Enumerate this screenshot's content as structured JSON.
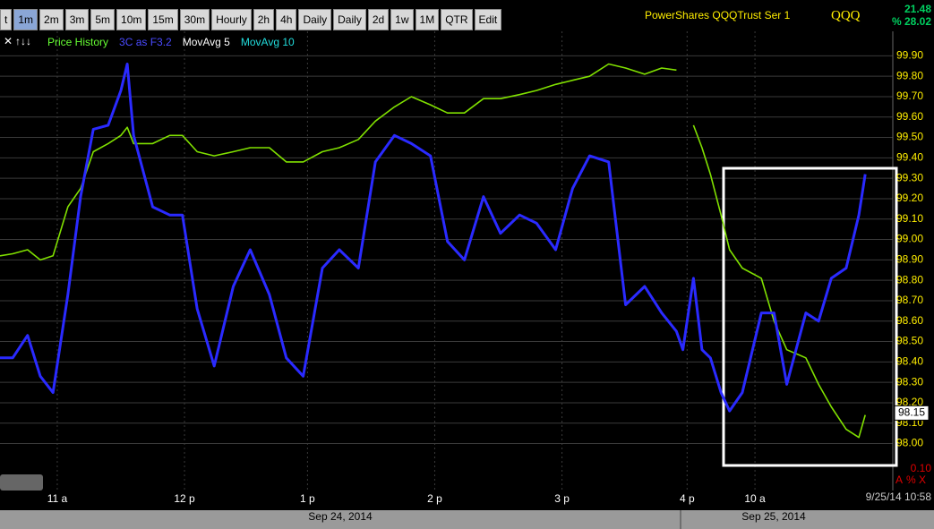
{
  "toolbar": {
    "buttons": [
      "t",
      "1m",
      "2m",
      "3m",
      "5m",
      "10m",
      "15m",
      "30m",
      "Hourly",
      "2h",
      "4h",
      "Daily",
      "Daily",
      "2d",
      "1w",
      "1M",
      "QTR",
      "Edit"
    ],
    "title": "PowerShares QQQTrust Ser 1",
    "symbol": "QQQ",
    "stat_top": "21.48",
    "stat_bottom": "% 28.02"
  },
  "chart_data": {
    "type": "line",
    "overlay_labels": [
      "MovAvg 5",
      "MovAvg 10"
    ],
    "x": [
      0,
      6,
      13,
      19,
      25,
      32,
      38,
      44,
      51,
      57,
      60,
      63,
      72,
      80,
      86,
      93,
      101,
      110,
      118,
      127,
      135,
      143,
      152,
      160,
      169,
      177,
      186,
      194,
      203,
      211,
      219,
      228,
      236,
      245,
      253,
      262,
      270,
      278,
      287,
      295,
      304,
      312,
      319,
      322,
      327,
      331,
      335,
      340,
      344,
      350,
      359,
      365,
      371,
      380,
      386,
      392,
      399,
      405,
      408
    ],
    "series": [
      {
        "name": "Price History",
        "color": "#80e000",
        "values": [
          98.92,
          98.93,
          98.95,
          98.9,
          98.92,
          99.16,
          99.25,
          99.43,
          99.47,
          99.51,
          99.55,
          99.47,
          99.47,
          99.51,
          99.51,
          99.43,
          99.41,
          99.43,
          99.45,
          99.45,
          99.38,
          99.38,
          99.43,
          99.45,
          99.49,
          99.58,
          99.65,
          99.7,
          99.66,
          99.62,
          99.62,
          99.69,
          99.69,
          99.71,
          99.73,
          99.76,
          99.78,
          99.8,
          99.86,
          99.84,
          99.81,
          99.84,
          99.83,
          null,
          99.56,
          99.45,
          99.32,
          99.12,
          98.95,
          98.86,
          98.81,
          98.6,
          98.46,
          98.42,
          98.29,
          98.18,
          98.07,
          98.03,
          98.14
        ]
      },
      {
        "name": "3C as F3.2",
        "color": "#2a2aff",
        "values": [
          98.42,
          98.42,
          98.53,
          98.33,
          98.25,
          98.73,
          99.21,
          99.54,
          99.56,
          99.73,
          99.86,
          99.51,
          99.16,
          99.12,
          99.12,
          98.66,
          98.38,
          98.77,
          98.95,
          98.73,
          98.42,
          98.33,
          98.86,
          98.95,
          98.86,
          99.38,
          99.51,
          99.47,
          99.41,
          98.99,
          98.9,
          99.21,
          99.03,
          99.12,
          99.08,
          98.95,
          99.25,
          99.41,
          99.38,
          98.68,
          98.77,
          98.64,
          98.55,
          98.46,
          98.81,
          98.46,
          98.42,
          98.25,
          98.16,
          98.25,
          98.64,
          98.64,
          98.29,
          98.64,
          98.6,
          98.81,
          98.86,
          99.12,
          99.32
        ]
      }
    ],
    "xlim": [
      0,
      421
    ],
    "xticks": [
      {
        "value": 27,
        "label": "11 a"
      },
      {
        "value": 87,
        "label": "12 p"
      },
      {
        "value": 145,
        "label": "1 p"
      },
      {
        "value": 205,
        "label": "2 p"
      },
      {
        "value": 265,
        "label": "3 p"
      },
      {
        "value": 324,
        "label": "4 p"
      },
      {
        "value": 356,
        "label": "10 a"
      }
    ],
    "ylim": [
      97.77,
      100.02
    ],
    "yticks": [
      {
        "value": 98,
        "label": "98.00"
      },
      {
        "value": 98.1,
        "label": "98.10"
      },
      {
        "value": 98.2,
        "label": "98.20"
      },
      {
        "value": 98.3,
        "label": "98.30"
      },
      {
        "value": 98.4,
        "label": "98.40"
      },
      {
        "value": 98.5,
        "label": "98.50"
      },
      {
        "value": 98.6,
        "label": "98.60"
      },
      {
        "value": 98.7,
        "label": "98.70"
      },
      {
        "value": 98.8,
        "label": "98.80"
      },
      {
        "value": 98.9,
        "label": "98.90"
      },
      {
        "value": 99,
        "label": "99.00"
      },
      {
        "value": 99.1,
        "label": "99.10"
      },
      {
        "value": 99.2,
        "label": "99.20"
      },
      {
        "value": 99.3,
        "label": "99.30"
      },
      {
        "value": 99.4,
        "label": "99.40"
      },
      {
        "value": 99.5,
        "label": "99.50"
      },
      {
        "value": 99.6,
        "label": "99.60"
      },
      {
        "value": 99.7,
        "label": "99.70"
      },
      {
        "value": 99.8,
        "label": "99.80"
      },
      {
        "value": 99.9,
        "label": "99.90"
      }
    ],
    "last_price": 98.15,
    "grid": true,
    "dates": [
      "Sep 24, 2014",
      "Sep 25, 2014"
    ],
    "timestamp": "9/25/14 10:58",
    "scale_step": "0.10",
    "corner_buttons": [
      "A",
      "%",
      "X"
    ]
  }
}
